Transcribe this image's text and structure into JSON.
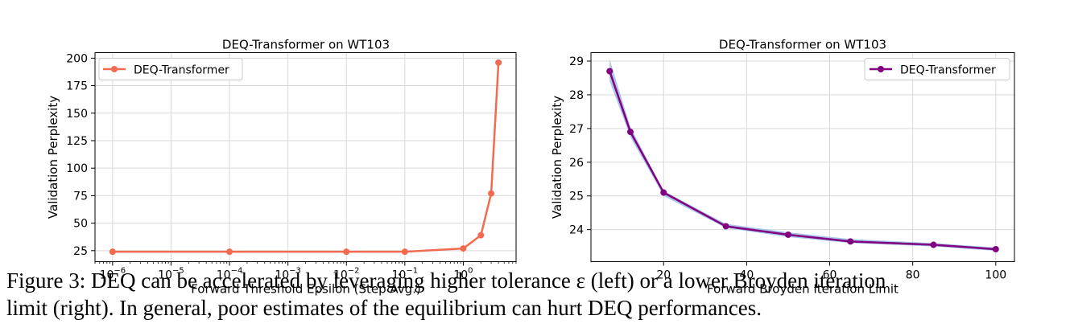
{
  "chart_data": [
    {
      "type": "line",
      "title": "DEQ-Transformer on WT103",
      "xlabel": "Forward Threshold Epsilon (Step Avg.)",
      "ylabel": "Validation Perplexity",
      "xscale": "log",
      "xlim": [
        5e-07,
        8
      ],
      "ylim": [
        15,
        205
      ],
      "xticks": [
        1e-06,
        1e-05,
        0.0001,
        0.001,
        0.01,
        0.1,
        1
      ],
      "xtick_labels": [
        {
          "base": "10",
          "exp": "−6"
        },
        {
          "base": "10",
          "exp": "−5"
        },
        {
          "base": "10",
          "exp": "−4"
        },
        {
          "base": "10",
          "exp": "−3"
        },
        {
          "base": "10",
          "exp": "−2"
        },
        {
          "base": "10",
          "exp": "−1"
        },
        {
          "base": "10",
          "exp": "0"
        }
      ],
      "yticks": [
        25,
        50,
        75,
        100,
        125,
        150,
        175,
        200
      ],
      "grid": true,
      "legend": "top-left",
      "color": "#f26b50",
      "series": [
        {
          "name": "DEQ-Transformer",
          "x": [
            1e-06,
            0.0001,
            0.01,
            0.1,
            1,
            2,
            3,
            4
          ],
          "y": [
            24,
            24,
            24,
            24,
            27,
            39,
            77,
            196
          ]
        }
      ]
    },
    {
      "type": "line",
      "title": "DEQ-Transformer on WT103",
      "xlabel": "Forward Broyden Iteration Limit",
      "ylabel": "Validation Perplexity",
      "xscale": "linear",
      "xlim": [
        2.5,
        104.5
      ],
      "ylim": [
        23.05,
        29.25
      ],
      "xticks": [
        20,
        40,
        60,
        80,
        100
      ],
      "yticks": [
        24,
        25,
        26,
        27,
        28,
        29
      ],
      "grid": true,
      "legend": "top-right",
      "color": "#800080",
      "band_color": "#8fb3e3",
      "series": [
        {
          "name": "DEQ-Transformer",
          "x": [
            7,
            12,
            20,
            35,
            50,
            65,
            85,
            100
          ],
          "y": [
            28.7,
            26.9,
            25.1,
            24.1,
            23.85,
            23.65,
            23.55,
            23.42
          ],
          "band_low": [
            28.4,
            26.75,
            25.0,
            24.05,
            23.78,
            23.6,
            23.5,
            23.37
          ],
          "band_high": [
            29.05,
            27.05,
            25.15,
            24.17,
            23.92,
            23.72,
            23.6,
            23.47
          ]
        }
      ]
    }
  ],
  "caption": {
    "line1": "Figure 3: DEQ can be accelerated by leveraging higher tolerance ε (left) or a lower Broyden iteration",
    "line2": "limit (right). In general, poor estimates of the equilibrium can hurt DEQ performances."
  }
}
